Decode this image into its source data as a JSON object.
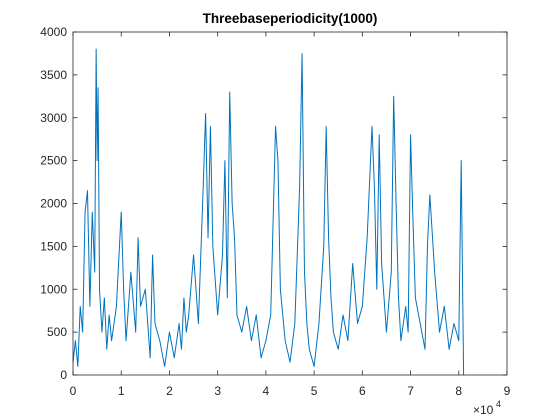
{
  "chart_data": {
    "type": "line",
    "title": "Threebaseperiodicity(1000)",
    "xlabel": "",
    "ylabel": "",
    "xlim": [
      0,
      90000
    ],
    "ylim": [
      0,
      4000
    ],
    "x_ticks": [
      0,
      10000,
      20000,
      30000,
      40000,
      50000,
      60000,
      70000,
      80000,
      90000
    ],
    "x_tick_labels": [
      "0",
      "1",
      "2",
      "3",
      "4",
      "5",
      "6",
      "7",
      "8",
      "9"
    ],
    "x_exponent_base": "×10",
    "x_exponent_power": "4",
    "y_ticks": [
      0,
      500,
      1000,
      1500,
      2000,
      2500,
      3000,
      3500,
      4000
    ],
    "y_tick_labels": [
      "0",
      "500",
      "1000",
      "1500",
      "2000",
      "2500",
      "3000",
      "3500",
      "4000"
    ],
    "grid": false,
    "line_color": "#0072BD",
    "series": [
      {
        "x": [
          0,
          500,
          1000,
          1500,
          2000,
          2500,
          3000,
          3500,
          4000,
          4500,
          4800,
          5000,
          5200,
          5500,
          6000,
          6500,
          7000,
          7500,
          8000,
          9000,
          10000,
          10500,
          11000,
          12000,
          13000,
          13500,
          14000,
          15000,
          16000,
          16500,
          17000,
          18000,
          19000,
          20000,
          21000,
          22000,
          22500,
          23000,
          23500,
          24000,
          25000,
          26000,
          27000,
          27500,
          28000,
          28500,
          29000,
          30000,
          31000,
          31500,
          32000,
          32500,
          33000,
          33500,
          34000,
          35000,
          36000,
          37000,
          38000,
          39000,
          40000,
          41000,
          42000,
          42500,
          43000,
          44000,
          45000,
          46000,
          47000,
          47500,
          48000,
          48500,
          49000,
          50000,
          51000,
          52000,
          52500,
          53000,
          53500,
          54000,
          55000,
          56000,
          57000,
          58000,
          59000,
          60000,
          61000,
          62000,
          62500,
          63000,
          63500,
          64000,
          65000,
          66000,
          66500,
          67000,
          67500,
          68000,
          69000,
          69500,
          70000,
          70500,
          71000,
          72000,
          73000,
          73500,
          74000,
          75000,
          76000,
          77000,
          78000,
          79000,
          80000,
          80500,
          80800,
          81000
        ],
        "y": [
          150,
          400,
          100,
          800,
          500,
          1900,
          2150,
          800,
          1900,
          1200,
          3800,
          2500,
          3350,
          1000,
          500,
          900,
          300,
          700,
          400,
          800,
          1900,
          1000,
          400,
          1200,
          500,
          1600,
          800,
          1000,
          200,
          1400,
          600,
          400,
          100,
          500,
          200,
          600,
          300,
          900,
          500,
          700,
          1400,
          600,
          2200,
          3050,
          1600,
          2900,
          1500,
          700,
          1400,
          2500,
          900,
          3300,
          2000,
          1600,
          700,
          500,
          800,
          400,
          700,
          200,
          400,
          700,
          2900,
          2500,
          1000,
          400,
          150,
          600,
          2200,
          3750,
          1200,
          600,
          300,
          100,
          600,
          1500,
          2900,
          1600,
          900,
          500,
          300,
          700,
          400,
          1300,
          600,
          800,
          1600,
          2900,
          2200,
          1000,
          2800,
          1300,
          500,
          1200,
          3250,
          2000,
          900,
          400,
          800,
          500,
          2800,
          1800,
          900,
          600,
          300,
          1500,
          2100,
          1200,
          500,
          800,
          300,
          600,
          400,
          2500,
          1000,
          0
        ]
      }
    ]
  }
}
